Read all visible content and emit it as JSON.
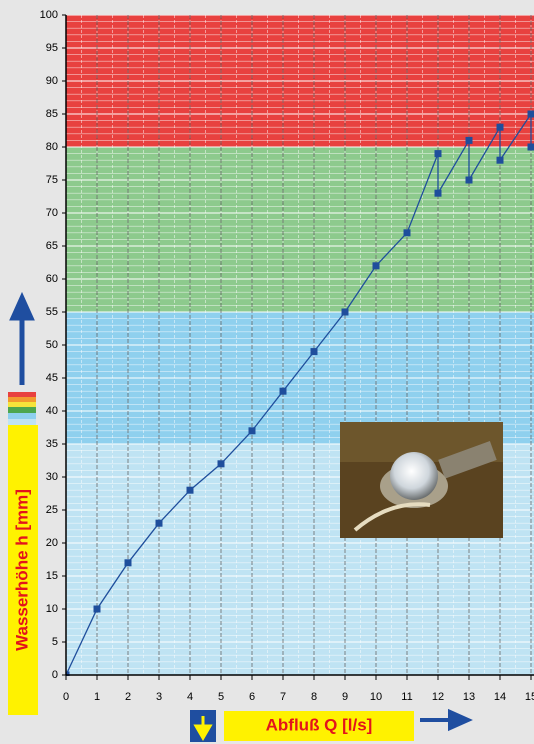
{
  "chart_data": {
    "type": "line",
    "y_label": "Wasserhöhe h [mm]",
    "x_label": "Abfluß Q [l/s]",
    "x": [
      0,
      1,
      2,
      3,
      4,
      5,
      6,
      7,
      8,
      9,
      10,
      11,
      12,
      12,
      13,
      13,
      14,
      14,
      15,
      15
    ],
    "series": [
      {
        "color": "#1f4e9c",
        "values": [
          0,
          10,
          17,
          23,
          28,
          32,
          37,
          43,
          49,
          55,
          62,
          67,
          79,
          73,
          81,
          75,
          83,
          78,
          85,
          80
        ]
      }
    ],
    "xlim": [
      0,
      15
    ],
    "ylim": [
      0,
      100
    ],
    "xticks": [
      0,
      1,
      2,
      3,
      4,
      5,
      6,
      7,
      8,
      9,
      10,
      11,
      12,
      13,
      14,
      15
    ],
    "yticks": [
      0,
      5,
      10,
      15,
      20,
      25,
      30,
      35,
      40,
      45,
      50,
      55,
      60,
      65,
      70,
      75,
      80,
      85,
      90,
      95,
      100
    ],
    "bands": [
      {
        "from": 0,
        "to": 35,
        "color": "#bfe3f3"
      },
      {
        "from": 35,
        "to": 55,
        "color": "#8fd0ee"
      },
      {
        "from": 55,
        "to": 80,
        "color": "#8dca8d"
      },
      {
        "from": 80,
        "to": 100,
        "color": "#e8413f"
      }
    ],
    "grid": true
  }
}
